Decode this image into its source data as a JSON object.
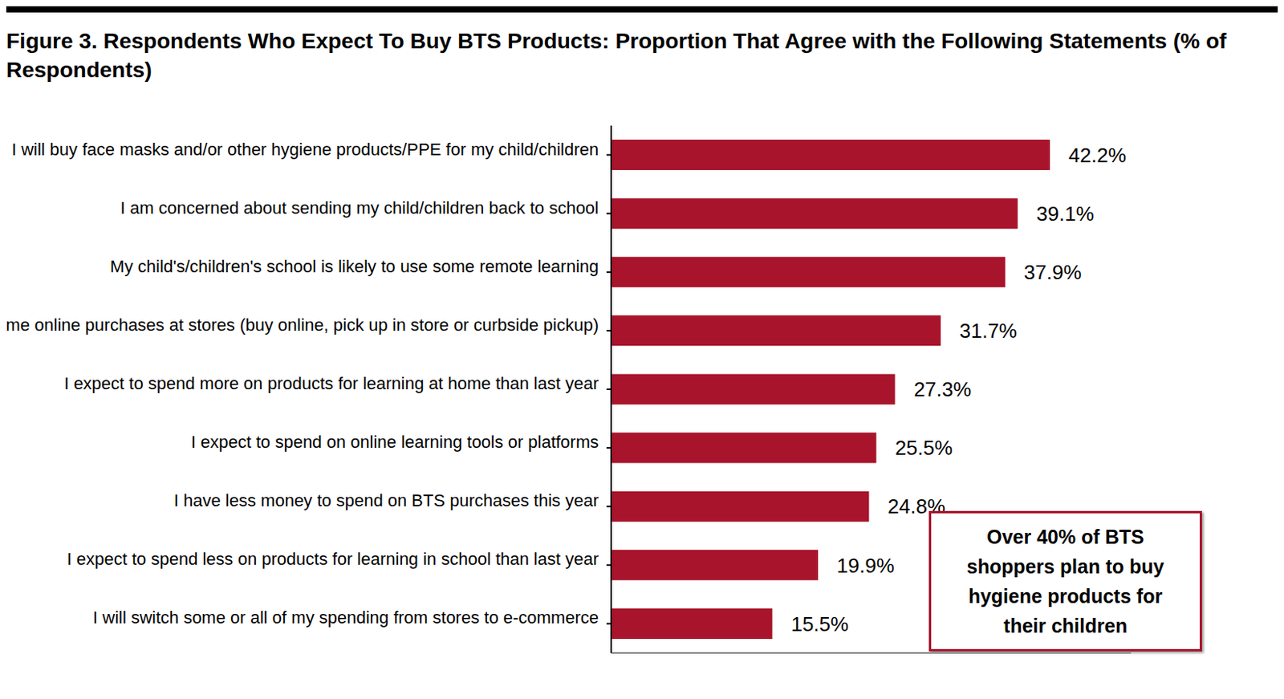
{
  "chart_data": {
    "type": "bar",
    "orientation": "horizontal",
    "title": "Figure 3. Respondents Who Expect To Buy BTS Products: Proportion That Agree with the Following Statements (% of Respondents)",
    "categories": [
      "I will buy face masks and/or other hygiene products/PPE for my child/children",
      "I am concerned about sending my child/children back to school",
      "My child's/children's school is likely to use some remote learning",
      "I expect to collect some online purchases at stores (buy online, pick up in store or curbside pickup)",
      "I expect to spend more on products for learning at home than last year",
      "I expect to spend on online learning tools or platforms",
      "I have less money to spend on BTS purchases this year",
      "I expect to spend less on products for learning in school than last year",
      "I will switch some or all of my spending from stores to e-commerce"
    ],
    "values": [
      42.2,
      39.1,
      37.9,
      31.7,
      27.3,
      25.5,
      24.8,
      19.9,
      15.5
    ],
    "value_labels": [
      "42.2%",
      "39.1%",
      "37.9%",
      "31.7%",
      "27.3%",
      "25.5%",
      "24.8%",
      "19.9%",
      "15.5%"
    ],
    "color": "#a8142c",
    "xlim": [
      0,
      50
    ],
    "grid": false,
    "data_labels": true,
    "tick_labels": "y",
    "annotations": [
      "Over 40% of BTS shoppers plan to buy hygiene products for their children"
    ]
  }
}
